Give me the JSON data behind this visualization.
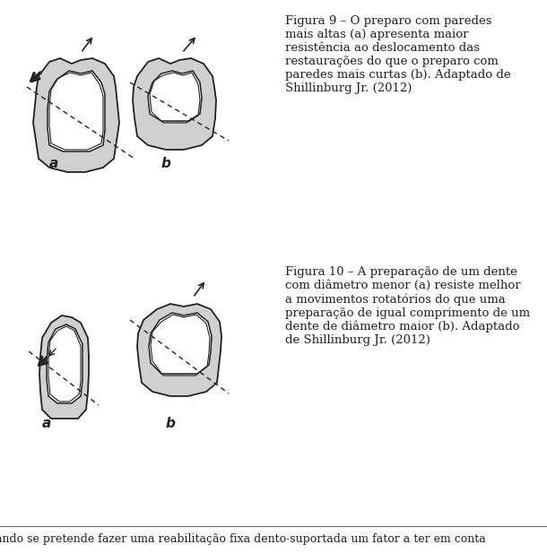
{
  "bg_color": "#ffffff",
  "fig9_caption": "Figura 9 – O preparo com paredes\nmais altas (a) apresenta maior\nresistência ao deslocamento das\nrestaurações do que o preparo com\nparedes mais curtas (b). Adaptado de\nShillinburg Jr. (2012)",
  "fig10_caption": "Figura 10 – A preparação de um dente\ncom diâmetro menor (a) resiste melhor\na movimentos rotatórios do que uma\npreparação de igual comprimento de um\ndente de diâmetro maior (b). Adaptado\nde Shillinburg Jr. (2012)",
  "bottom_text": "ando se pretende fazer uma reabilitação fixa dento-suportada um fator a ter em conta",
  "label_a1": "a",
  "label_b1": "b",
  "label_a2": "a",
  "label_b2": "b",
  "hatch_color": "#c8c8c8",
  "line_color": "#222222",
  "font_size_caption": 9.5,
  "font_size_label": 11,
  "font_size_bottom": 9
}
